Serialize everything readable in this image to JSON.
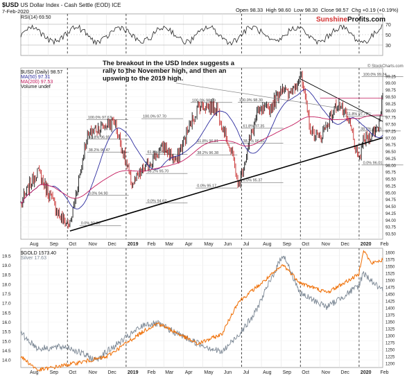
{
  "header": {
    "symbol": "$USD",
    "name": "US Dollar Index - Cash Settle (EOD) ICE",
    "date": "7-Feb-2020",
    "open_label": "Open",
    "open": "98.33",
    "high_label": "High",
    "high": "98.60",
    "low_label": "Low",
    "low": "98.30",
    "close_label": "Close",
    "close": "98.57",
    "chg_label": "Chg",
    "chg": "+0.19 (+0.19%)",
    "stockcharts": "© StockCharts.com"
  },
  "brand": {
    "part1": "Sunshine",
    "part2": "Profits.com"
  },
  "colors": {
    "price": "#000000",
    "ma50": "#2b2b9e",
    "ma200": "#c2185b",
    "gold": "#ef6c00",
    "silver": "#7b8794",
    "brand_red": "#d32f2f",
    "fib": "#444444",
    "vline": "#000000"
  },
  "rsi_panel": {
    "label": "RSI(14) 69.50",
    "ticks": [
      "70",
      "50",
      "30"
    ],
    "tick_values": [
      70,
      50,
      30
    ]
  },
  "usd_panel": {
    "legend": [
      "$USD (Daily) 98.57",
      "MA(50) 97.31",
      "MA(200) 97.53",
      "Volume undef"
    ],
    "y_ticks": [
      "93.50",
      "93.75",
      "94.00",
      "94.25",
      "94.50",
      "94.75",
      "95.00",
      "95.25",
      "95.50",
      "95.75",
      "96.00",
      "96.25",
      "96.50",
      "96.75",
      "97.00",
      "97.25",
      "97.50",
      "97.75",
      "98.00",
      "98.25",
      "98.50",
      "98.75",
      "99.00",
      "99.25"
    ],
    "y_tick_values": [
      93.5,
      93.75,
      94,
      94.25,
      94.5,
      94.75,
      95,
      95.25,
      95.5,
      95.75,
      96,
      96.25,
      96.5,
      96.75,
      97,
      97.25,
      97.5,
      97.75,
      98,
      98.25,
      98.5,
      98.75,
      99,
      99.25
    ],
    "ylim": [
      93.3,
      99.55
    ],
    "annotation": "The breakout in the USD Index suggests a rally to the November high, and then an upswing to the 2019 high."
  },
  "gold_panel": {
    "legend": [
      "$GOLD 1573.40",
      "Silver 17.63"
    ],
    "left_ticks": [
      "14.0",
      "14.5",
      "15.0",
      "15.5",
      "16.0",
      "16.5",
      "17.0",
      "17.5",
      "18.0",
      "18.5",
      "19.0",
      "19.5"
    ],
    "left_tick_values": [
      14,
      14.5,
      15,
      15.5,
      16,
      16.5,
      17,
      17.5,
      18,
      18.5,
      19,
      19.5
    ],
    "right_ticks": [
      "1200",
      "1225",
      "1250",
      "1275",
      "1300",
      "1325",
      "1350",
      "1375",
      "1400",
      "1425",
      "1450",
      "1475",
      "1500",
      "1525",
      "1550",
      "1575",
      "1600"
    ],
    "right_tick_values": [
      1200,
      1225,
      1250,
      1275,
      1300,
      1325,
      1350,
      1375,
      1400,
      1425,
      1450,
      1475,
      1500,
      1525,
      1550,
      1575,
      1600
    ],
    "silver_ylim": [
      13.6,
      19.9
    ],
    "gold_ylim": [
      1185,
      1615
    ]
  },
  "x_axis": {
    "labels": [
      "Aug",
      "Sep",
      "Oct",
      "Nov",
      "Dec",
      "2019",
      "Feb",
      "Mar",
      "Apr",
      "May",
      "Jun",
      "Jul",
      "Aug",
      "Sep",
      "Oct",
      "Nov",
      "Dec",
      "2020",
      "Feb"
    ],
    "bold": [
      "2019",
      "2020"
    ]
  },
  "chart_data": {
    "type": "line",
    "x_range": [
      "2018-07-20",
      "2020-02-07"
    ],
    "usd": {
      "name": "$USD (Daily)",
      "x": [
        "2018-07-20",
        "2018-08-15",
        "2018-09-20",
        "2018-10-05",
        "2018-10-31",
        "2018-11-12",
        "2018-12-14",
        "2019-01-10",
        "2019-01-31",
        "2019-03-01",
        "2019-03-20",
        "2019-04-10",
        "2019-04-25",
        "2019-05-23",
        "2019-06-20",
        "2019-06-25",
        "2019-07-25",
        "2019-08-15",
        "2019-09-03",
        "2019-09-12",
        "2019-10-01",
        "2019-10-18",
        "2019-11-01",
        "2019-11-29",
        "2019-12-20",
        "2019-12-31",
        "2020-01-06",
        "2020-01-31",
        "2020-02-07"
      ],
      "y": [
        94.6,
        95.8,
        94.1,
        93.8,
        97.0,
        97.3,
        97.6,
        95.3,
        95.9,
        96.7,
        96.1,
        97.4,
        98.2,
        98.1,
        96.1,
        95.2,
        97.9,
        98.1,
        98.9,
        98.5,
        99.3,
        97.2,
        97.0,
        98.3,
        97.3,
        96.1,
        96.8,
        97.4,
        98.6
      ]
    },
    "ma50": {
      "name": "MA(50)",
      "last": 97.31
    },
    "ma200": {
      "name": "MA(200)",
      "last": 97.53
    },
    "rsi": {
      "name": "RSI(14)",
      "last": 69.5
    },
    "gold": {
      "name": "$GOLD",
      "x": [
        "2018-07-20",
        "2018-08-16",
        "2018-10-01",
        "2018-11-30",
        "2019-01-31",
        "2019-02-20",
        "2019-04-23",
        "2019-05-31",
        "2019-06-25",
        "2019-08-07",
        "2019-09-04",
        "2019-10-01",
        "2019-11-12",
        "2019-12-31",
        "2020-01-08",
        "2020-01-20",
        "2020-02-07"
      ],
      "y": [
        1225,
        1175,
        1195,
        1222,
        1320,
        1345,
        1270,
        1305,
        1420,
        1500,
        1555,
        1490,
        1455,
        1520,
        1610,
        1560,
        1573.4
      ]
    },
    "silver": {
      "name": "Silver",
      "x": [
        "2018-07-20",
        "2018-08-16",
        "2018-10-01",
        "2018-11-14",
        "2019-01-31",
        "2019-02-20",
        "2019-04-15",
        "2019-05-31",
        "2019-06-25",
        "2019-07-19",
        "2019-09-04",
        "2019-10-01",
        "2019-11-12",
        "2019-12-31",
        "2020-01-08",
        "2020-01-20",
        "2020-02-07"
      ],
      "y": [
        15.4,
        14.6,
        14.7,
        14.0,
        15.9,
        15.9,
        15.0,
        14.4,
        15.3,
        16.3,
        19.6,
        17.5,
        16.8,
        17.9,
        18.6,
        18.2,
        17.63
      ]
    },
    "fib_labels": [
      {
        "text": "100.0% 97.67",
        "date": "2018-10-31",
        "value": 97.67
      },
      {
        "text": "61.8% 96.95",
        "date": "2018-11-01",
        "value": 96.95
      },
      {
        "text": "38.2% 96.47",
        "date": "2018-11-01",
        "value": 96.47
      },
      {
        "text": "0.0% 94.90",
        "date": "2018-11-01",
        "value": 94.9
      },
      {
        "text": "0.0% 93.80",
        "date": "2018-10-20",
        "value": 93.8
      },
      {
        "text": "100.0% 97.70",
        "date": "2019-01-25",
        "value": 97.7
      },
      {
        "text": "61.8% 96.40",
        "date": "2019-02-01",
        "value": 96.4
      },
      {
        "text": "38.2% 95.70",
        "date": "2019-02-01",
        "value": 95.7
      },
      {
        "text": "0.0% 94.62",
        "date": "2019-02-01",
        "value": 94.62
      },
      {
        "text": "100.0% 98.29",
        "date": "2019-04-12",
        "value": 98.29
      },
      {
        "text": "61.8% 96.81",
        "date": "2019-04-20",
        "value": 96.81
      },
      {
        "text": "38.2% 96.38",
        "date": "2019-04-20",
        "value": 96.38
      },
      {
        "text": "0.0% 95.17",
        "date": "2019-04-20",
        "value": 95.17
      },
      {
        "text": "100.0% 98.30",
        "date": "2019-06-25",
        "value": 98.3
      },
      {
        "text": "61.8% 97.35",
        "date": "2019-07-01",
        "value": 97.35
      },
      {
        "text": "38.2% 96.80",
        "date": "2019-07-01",
        "value": 96.8
      },
      {
        "text": "0.0% 95.37",
        "date": "2019-07-01",
        "value": 95.37
      },
      {
        "text": "100.0% 99.24",
        "date": "2020-01-05",
        "value": 99.24
      },
      {
        "text": "61.8% 97.79",
        "date": "2019-12-10",
        "value": 97.79
      },
      {
        "text": "38.2% 97.25",
        "date": "2020-01-01",
        "value": 97.25
      },
      {
        "text": "0.0% 96.01",
        "date": "2020-01-05",
        "value": 96.01
      }
    ],
    "vertical_markers": [
      "2018-10-01",
      "2019-01-01",
      "2019-07-01",
      "2019-10-01",
      "2020-01-01"
    ]
  }
}
